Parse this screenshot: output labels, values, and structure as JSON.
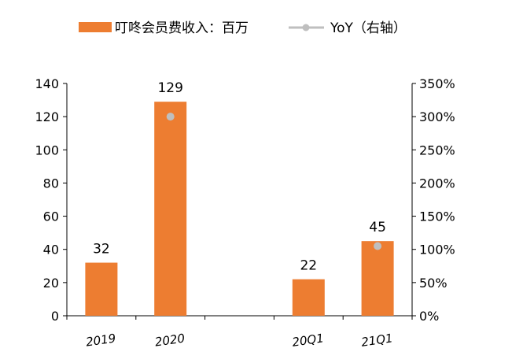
{
  "chart_data": {
    "type": "bar",
    "categories": [
      "2019",
      "2020",
      "",
      "20Q1",
      "21Q1"
    ],
    "series": [
      {
        "name": "叮咚会员费收入：百万",
        "type": "bar",
        "axis": "left",
        "color": "#ED7D31",
        "values": [
          32,
          129,
          null,
          22,
          45
        ],
        "labels": [
          "32",
          "129",
          "",
          "22",
          "45"
        ]
      },
      {
        "name": "YoY（右轴）",
        "type": "marker",
        "axis": "right",
        "color": "#BFBFBF",
        "values": [
          null,
          3.0,
          null,
          null,
          1.05
        ]
      }
    ],
    "y_left": {
      "ylim": [
        0,
        140
      ],
      "ticks": [
        "0",
        "20",
        "40",
        "60",
        "80",
        "100",
        "120",
        "140"
      ]
    },
    "y_right": {
      "ylim": [
        0,
        3.5
      ],
      "ticks": [
        "0%",
        "50%",
        "100%",
        "150%",
        "200%",
        "250%",
        "300%",
        "350%"
      ]
    },
    "grid": false,
    "legend_position": "top"
  }
}
